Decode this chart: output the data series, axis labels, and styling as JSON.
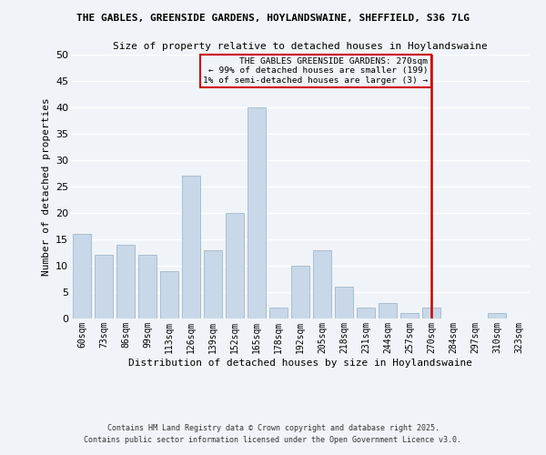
{
  "title": "THE GABLES, GREENSIDE GARDENS, HOYLANDSWAINE, SHEFFIELD, S36 7LG",
  "subtitle": "Size of property relative to detached houses in Hoylandswaine",
  "xlabel": "Distribution of detached houses by size in Hoylandswaine",
  "ylabel": "Number of detached properties",
  "bar_color": "#c8d8e8",
  "bar_edge_color": "#a0b8cc",
  "background_color": "#f0f4f8",
  "grid_color": "#ffffff",
  "categories": [
    "60sqm",
    "73sqm",
    "86sqm",
    "99sqm",
    "113sqm",
    "126sqm",
    "139sqm",
    "152sqm",
    "165sqm",
    "178sqm",
    "192sqm",
    "205sqm",
    "218sqm",
    "231sqm",
    "244sqm",
    "257sqm",
    "270sqm",
    "284sqm",
    "297sqm",
    "310sqm",
    "323sqm"
  ],
  "values": [
    16,
    12,
    14,
    12,
    9,
    27,
    13,
    20,
    40,
    2,
    10,
    13,
    6,
    2,
    3,
    1,
    2,
    0,
    0,
    1,
    0
  ],
  "ylim": [
    0,
    50
  ],
  "yticks": [
    0,
    5,
    10,
    15,
    20,
    25,
    30,
    35,
    40,
    45,
    50
  ],
  "vline_x_idx": 16,
  "vline_color": "#cc0000",
  "annotation_title": "THE GABLES GREENSIDE GARDENS: 270sqm",
  "annotation_line1": "← 99% of detached houses are smaller (199)",
  "annotation_line2": "1% of semi-detached houses are larger (3) →",
  "annotation_box_edge": "#cc0000",
  "footer1": "Contains HM Land Registry data © Crown copyright and database right 2025.",
  "footer2": "Contains public sector information licensed under the Open Government Licence v3.0."
}
